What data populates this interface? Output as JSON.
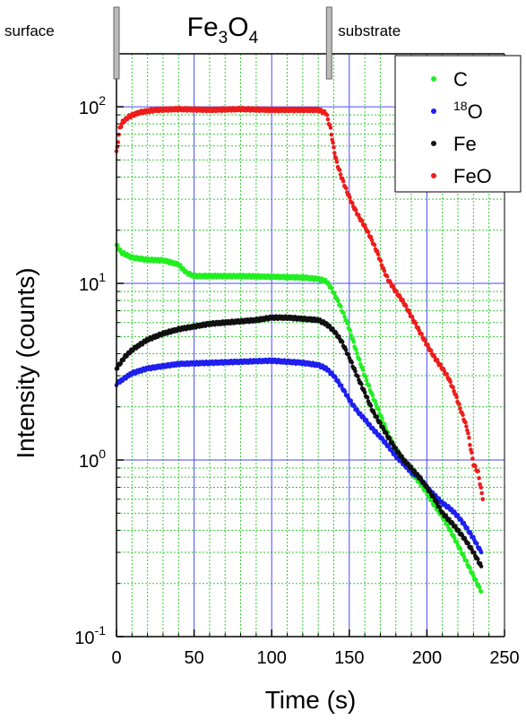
{
  "chart_data": {
    "type": "scatter",
    "title": "",
    "xlabel": "Time (s)",
    "ylabel": "Intensity (counts)",
    "xlim": [
      0,
      250
    ],
    "ylim": [
      0.1,
      200
    ],
    "yscale": "log",
    "x_ticks": [
      "0",
      "50",
      "100",
      "150",
      "200",
      "250"
    ],
    "y_ticks": [
      {
        "base": "10",
        "exp": "-1"
      },
      {
        "base": "10",
        "exp": "0"
      },
      {
        "base": "10",
        "exp": "1"
      },
      {
        "base": "10",
        "exp": "2"
      }
    ],
    "grid": {
      "major": true,
      "minor": true,
      "major_color": "#4a4aff",
      "minor_color": "#33cc33"
    },
    "legend": {
      "position": "top-right"
    },
    "regions": [
      {
        "label": "surface",
        "x_from": 0,
        "x_to": 0
      },
      {
        "label_main": "Fe",
        "sub1": "3",
        "mid": "O",
        "sub2": "4",
        "x_from": 0,
        "x_to": 137
      },
      {
        "label": "substrate",
        "x_from": 137,
        "x_to": 250
      }
    ],
    "region_boundaries": [
      0,
      137
    ],
    "series": [
      {
        "name": "C",
        "color": "#22ee22",
        "points": [
          [
            0,
            16.5
          ],
          [
            3,
            15
          ],
          [
            10,
            14
          ],
          [
            20,
            13.6
          ],
          [
            30,
            13.5
          ],
          [
            40,
            12.8
          ],
          [
            45,
            11.5
          ],
          [
            50,
            11
          ],
          [
            60,
            11
          ],
          [
            80,
            11
          ],
          [
            100,
            10.9
          ],
          [
            120,
            10.8
          ],
          [
            130,
            10.6
          ],
          [
            135,
            10.3
          ],
          [
            138,
            9.5
          ],
          [
            141,
            8.5
          ],
          [
            144,
            7.5
          ],
          [
            147,
            6.5
          ],
          [
            150,
            5.5
          ],
          [
            155,
            4
          ],
          [
            160,
            3
          ],
          [
            165,
            2.3
          ],
          [
            170,
            1.8
          ],
          [
            175,
            1.4
          ],
          [
            180,
            1.15
          ],
          [
            185,
            1
          ],
          [
            190,
            0.85
          ],
          [
            195,
            0.75
          ],
          [
            200,
            0.65
          ],
          [
            205,
            0.55
          ],
          [
            210,
            0.48
          ],
          [
            215,
            0.4
          ],
          [
            220,
            0.33
          ],
          [
            225,
            0.27
          ],
          [
            230,
            0.22
          ],
          [
            235,
            0.18
          ]
        ]
      },
      {
        "name": "18O",
        "label_sup": "18",
        "label_main": "O",
        "color": "#1f1fee",
        "points": [
          [
            0,
            2.7
          ],
          [
            5,
            2.9
          ],
          [
            10,
            3.1
          ],
          [
            20,
            3.3
          ],
          [
            30,
            3.4
          ],
          [
            40,
            3.5
          ],
          [
            60,
            3.55
          ],
          [
            80,
            3.6
          ],
          [
            100,
            3.65
          ],
          [
            120,
            3.55
          ],
          [
            130,
            3.45
          ],
          [
            135,
            3.3
          ],
          [
            140,
            3
          ],
          [
            145,
            2.6
          ],
          [
            150,
            2.2
          ],
          [
            155,
            1.9
          ],
          [
            160,
            1.7
          ],
          [
            165,
            1.5
          ],
          [
            170,
            1.35
          ],
          [
            175,
            1.2
          ],
          [
            180,
            1.05
          ],
          [
            185,
            0.95
          ],
          [
            190,
            0.85
          ],
          [
            195,
            0.8
          ],
          [
            200,
            0.7
          ],
          [
            205,
            0.63
          ],
          [
            210,
            0.57
          ],
          [
            215,
            0.53
          ],
          [
            220,
            0.48
          ],
          [
            225,
            0.42
          ],
          [
            230,
            0.36
          ],
          [
            235,
            0.3
          ]
        ]
      },
      {
        "name": "Fe",
        "color": "#111111",
        "points": [
          [
            0,
            3.3
          ],
          [
            5,
            3.8
          ],
          [
            10,
            4.2
          ],
          [
            20,
            4.8
          ],
          [
            30,
            5.2
          ],
          [
            40,
            5.5
          ],
          [
            50,
            5.7
          ],
          [
            60,
            5.9
          ],
          [
            70,
            6
          ],
          [
            80,
            6.1
          ],
          [
            90,
            6.2
          ],
          [
            100,
            6.4
          ],
          [
            110,
            6.4
          ],
          [
            120,
            6.3
          ],
          [
            130,
            6.2
          ],
          [
            135,
            5.9
          ],
          [
            140,
            5.4
          ],
          [
            145,
            4.7
          ],
          [
            150,
            3.8
          ],
          [
            155,
            3
          ],
          [
            160,
            2.4
          ],
          [
            165,
            1.9
          ],
          [
            170,
            1.6
          ],
          [
            175,
            1.35
          ],
          [
            180,
            1.15
          ],
          [
            185,
            1
          ],
          [
            190,
            0.9
          ],
          [
            195,
            0.8
          ],
          [
            200,
            0.7
          ],
          [
            205,
            0.6
          ],
          [
            210,
            0.5
          ],
          [
            215,
            0.45
          ],
          [
            220,
            0.4
          ],
          [
            225,
            0.35
          ],
          [
            230,
            0.3
          ],
          [
            235,
            0.25
          ]
        ]
      },
      {
        "name": "FeO",
        "color": "#ee1c1c",
        "points": [
          [
            0,
            55
          ],
          [
            2,
            75
          ],
          [
            4,
            82
          ],
          [
            8,
            88
          ],
          [
            15,
            93
          ],
          [
            25,
            96
          ],
          [
            40,
            97
          ],
          [
            60,
            96
          ],
          [
            80,
            97
          ],
          [
            100,
            96
          ],
          [
            120,
            96
          ],
          [
            130,
            96
          ],
          [
            135,
            92
          ],
          [
            138,
            75
          ],
          [
            140,
            58
          ],
          [
            142,
            48
          ],
          [
            145,
            40
          ],
          [
            148,
            34
          ],
          [
            152,
            28
          ],
          [
            156,
            24
          ],
          [
            160,
            21
          ],
          [
            164,
            18
          ],
          [
            168,
            15
          ],
          [
            172,
            12
          ],
          [
            175,
            10.5
          ],
          [
            180,
            9
          ],
          [
            185,
            7.8
          ],
          [
            190,
            6.5
          ],
          [
            195,
            5.4
          ],
          [
            200,
            4.5
          ],
          [
            205,
            3.8
          ],
          [
            210,
            3.3
          ],
          [
            214,
            2.9
          ],
          [
            218,
            2.4
          ],
          [
            222,
            1.9
          ],
          [
            226,
            1.5
          ],
          [
            230,
            0.95
          ],
          [
            233,
            0.85
          ],
          [
            236,
            0.6
          ]
        ]
      }
    ]
  }
}
